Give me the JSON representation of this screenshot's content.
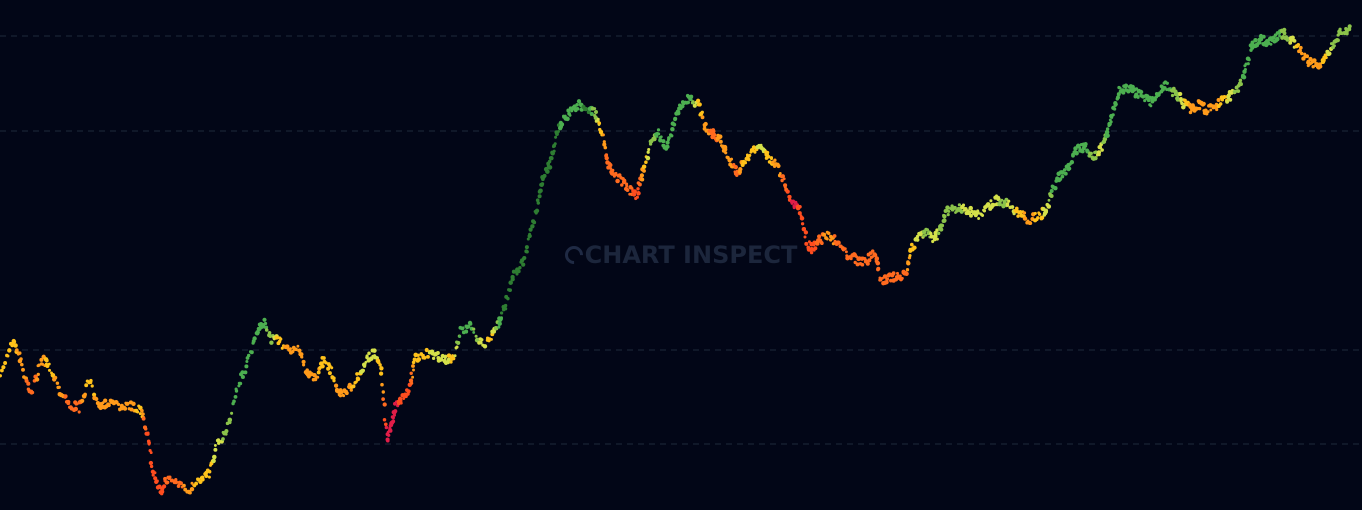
{
  "watermark": {
    "text": "CHART INSPECT",
    "logo_icon": "crescent-logo-icon"
  },
  "colors": {
    "background": "#020617",
    "gridline": "#1e293b",
    "scale": [
      "#e11d48",
      "#ff4d1f",
      "#ff6a1f",
      "#ff9a1a",
      "#ffc21a",
      "#d4e04a",
      "#8bc34a",
      "#4caf50",
      "#2e7d32"
    ]
  },
  "chart_data": {
    "type": "scatter",
    "title": "",
    "xlabel": "",
    "ylabel": "",
    "grid": true,
    "xlim": [
      0,
      1360
    ],
    "ylim": [
      0,
      510
    ],
    "gridlines_y": [
      36,
      131,
      350,
      444
    ],
    "series": [
      {
        "points": [
          [
            0,
            372,
            4
          ],
          [
            12,
            340,
            4
          ],
          [
            20,
            362,
            3
          ],
          [
            30,
            396,
            2
          ],
          [
            40,
            360,
            3
          ],
          [
            48,
            364,
            4
          ],
          [
            58,
            388,
            3
          ],
          [
            68,
            405,
            2
          ],
          [
            78,
            408,
            2
          ],
          [
            88,
            382,
            4
          ],
          [
            98,
            405,
            3
          ],
          [
            108,
            402,
            3
          ],
          [
            118,
            408,
            3
          ],
          [
            128,
            406,
            3
          ],
          [
            140,
            410,
            4
          ],
          [
            146,
            432,
            1
          ],
          [
            152,
            468,
            1
          ],
          [
            160,
            492,
            1
          ],
          [
            168,
            476,
            2
          ],
          [
            178,
            486,
            2
          ],
          [
            188,
            490,
            3
          ],
          [
            198,
            478,
            4
          ],
          [
            208,
            474,
            4
          ],
          [
            216,
            444,
            5
          ],
          [
            226,
            430,
            6
          ],
          [
            236,
            388,
            7
          ],
          [
            246,
            366,
            7
          ],
          [
            256,
            330,
            7
          ],
          [
            262,
            322,
            7
          ],
          [
            270,
            338,
            6
          ],
          [
            278,
            342,
            4
          ],
          [
            288,
            348,
            3
          ],
          [
            298,
            350,
            3
          ],
          [
            306,
            374,
            3
          ],
          [
            314,
            380,
            3
          ],
          [
            322,
            360,
            4
          ],
          [
            330,
            372,
            4
          ],
          [
            338,
            394,
            3
          ],
          [
            346,
            392,
            3
          ],
          [
            356,
            378,
            4
          ],
          [
            364,
            364,
            5
          ],
          [
            372,
            352,
            5
          ],
          [
            380,
            368,
            4
          ],
          [
            386,
            440,
            0
          ],
          [
            390,
            424,
            0
          ],
          [
            394,
            408,
            0
          ],
          [
            400,
            400,
            1
          ],
          [
            408,
            390,
            1
          ],
          [
            414,
            360,
            4
          ],
          [
            424,
            354,
            4
          ],
          [
            434,
            356,
            5
          ],
          [
            444,
            358,
            5
          ],
          [
            452,
            360,
            4
          ],
          [
            460,
            332,
            7
          ],
          [
            470,
            326,
            7
          ],
          [
            480,
            344,
            5
          ],
          [
            490,
            340,
            4
          ],
          [
            498,
            322,
            7
          ],
          [
            504,
            306,
            8
          ],
          [
            512,
            276,
            8
          ],
          [
            522,
            262,
            8
          ],
          [
            530,
            230,
            8
          ],
          [
            538,
            196,
            8
          ],
          [
            544,
            174,
            8
          ],
          [
            550,
            160,
            8
          ],
          [
            556,
            132,
            8
          ],
          [
            562,
            120,
            7
          ],
          [
            570,
            112,
            7
          ],
          [
            578,
            104,
            7
          ],
          [
            586,
            108,
            8
          ],
          [
            594,
            112,
            6
          ],
          [
            600,
            128,
            4
          ],
          [
            606,
            160,
            2
          ],
          [
            612,
            176,
            2
          ],
          [
            620,
            180,
            2
          ],
          [
            628,
            190,
            2
          ],
          [
            636,
            196,
            1
          ],
          [
            642,
            170,
            3
          ],
          [
            650,
            142,
            6
          ],
          [
            658,
            134,
            7
          ],
          [
            666,
            150,
            7
          ],
          [
            674,
            120,
            7
          ],
          [
            682,
            104,
            7
          ],
          [
            690,
            98,
            7
          ],
          [
            698,
            106,
            4
          ],
          [
            704,
            126,
            3
          ],
          [
            712,
            134,
            2
          ],
          [
            720,
            140,
            3
          ],
          [
            728,
            160,
            3
          ],
          [
            736,
            172,
            2
          ],
          [
            744,
            162,
            4
          ],
          [
            752,
            150,
            4
          ],
          [
            760,
            146,
            5
          ],
          [
            768,
            158,
            4
          ],
          [
            776,
            166,
            3
          ],
          [
            784,
            184,
            2
          ],
          [
            792,
            204,
            0
          ],
          [
            800,
            212,
            1
          ],
          [
            806,
            244,
            1
          ],
          [
            812,
            250,
            1
          ],
          [
            818,
            240,
            2
          ],
          [
            828,
            236,
            3
          ],
          [
            838,
            244,
            2
          ],
          [
            848,
            256,
            2
          ],
          [
            858,
            262,
            2
          ],
          [
            866,
            260,
            2
          ],
          [
            874,
            254,
            2
          ],
          [
            880,
            282,
            2
          ],
          [
            888,
            276,
            2
          ],
          [
            896,
            278,
            2
          ],
          [
            904,
            276,
            2
          ],
          [
            910,
            250,
            4
          ],
          [
            918,
            236,
            5
          ],
          [
            926,
            232,
            6
          ],
          [
            934,
            240,
            5
          ],
          [
            940,
            226,
            6
          ],
          [
            946,
            212,
            6
          ],
          [
            956,
            208,
            6
          ],
          [
            966,
            210,
            5
          ],
          [
            976,
            216,
            5
          ],
          [
            986,
            210,
            5
          ],
          [
            994,
            200,
            5
          ],
          [
            1002,
            202,
            6
          ],
          [
            1010,
            206,
            5
          ],
          [
            1018,
            214,
            4
          ],
          [
            1028,
            220,
            3
          ],
          [
            1038,
            216,
            4
          ],
          [
            1046,
            208,
            5
          ],
          [
            1052,
            186,
            7
          ],
          [
            1060,
            176,
            7
          ],
          [
            1068,
            166,
            7
          ],
          [
            1076,
            150,
            7
          ],
          [
            1084,
            148,
            7
          ],
          [
            1092,
            156,
            6
          ],
          [
            1100,
            150,
            5
          ],
          [
            1106,
            132,
            7
          ],
          [
            1112,
            114,
            7
          ],
          [
            1118,
            92,
            7
          ],
          [
            1126,
            86,
            7
          ],
          [
            1134,
            92,
            7
          ],
          [
            1142,
            96,
            7
          ],
          [
            1150,
            102,
            7
          ],
          [
            1158,
            90,
            7
          ],
          [
            1166,
            86,
            7
          ],
          [
            1174,
            94,
            6
          ],
          [
            1182,
            102,
            5
          ],
          [
            1190,
            108,
            3
          ],
          [
            1198,
            104,
            3
          ],
          [
            1206,
            110,
            3
          ],
          [
            1214,
            108,
            3
          ],
          [
            1222,
            100,
            4
          ],
          [
            1230,
            96,
            5
          ],
          [
            1238,
            88,
            6
          ],
          [
            1244,
            70,
            7
          ],
          [
            1252,
            44,
            7
          ],
          [
            1260,
            40,
            7
          ],
          [
            1268,
            42,
            7
          ],
          [
            1276,
            36,
            7
          ],
          [
            1284,
            34,
            6
          ],
          [
            1292,
            42,
            5
          ],
          [
            1300,
            52,
            3
          ],
          [
            1308,
            62,
            3
          ],
          [
            1316,
            66,
            3
          ],
          [
            1324,
            60,
            4
          ],
          [
            1332,
            44,
            6
          ],
          [
            1340,
            32,
            6
          ],
          [
            1350,
            30,
            6
          ]
        ]
      }
    ]
  }
}
